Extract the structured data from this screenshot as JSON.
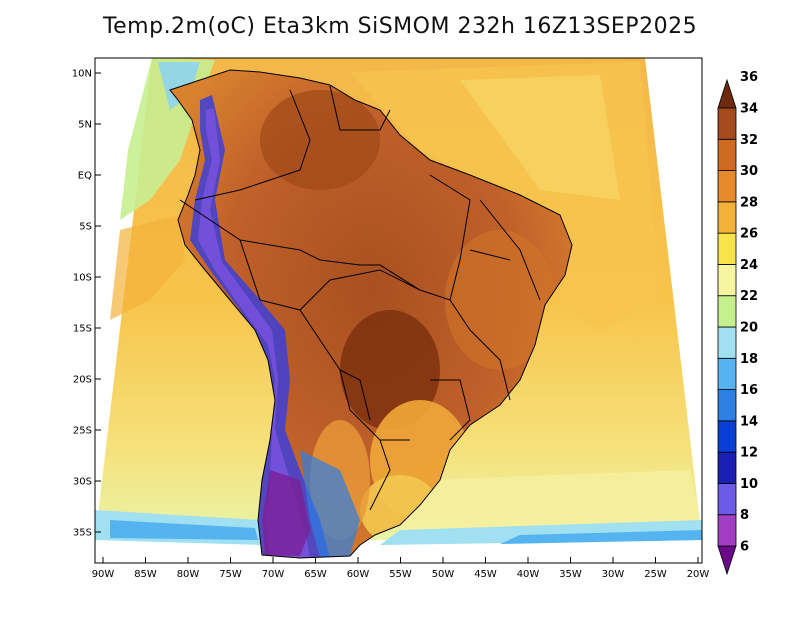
{
  "title": "Temp.2m(oC) Eta3km SiSMOM 232h 16Z13SEP2025",
  "map": {
    "lat_labels": [
      "10N",
      "5N",
      "EQ",
      "5S",
      "10S",
      "15S",
      "20S",
      "25S",
      "30S",
      "35S"
    ],
    "lat_values": [
      10,
      5,
      0,
      -5,
      -10,
      -15,
      -20,
      -25,
      -30,
      -35
    ],
    "lon_labels": [
      "90W",
      "85W",
      "80W",
      "75W",
      "70W",
      "65W",
      "60W",
      "55W",
      "50W",
      "45W",
      "40W",
      "35W",
      "30W",
      "25W",
      "20W"
    ],
    "lon_values": [
      -90,
      -85,
      -80,
      -75,
      -70,
      -65,
      -60,
      -55,
      -50,
      -45,
      -40,
      -35,
      -30,
      -25,
      -20
    ]
  },
  "colorbar": {
    "labels": [
      "6",
      "8",
      "10",
      "12",
      "14",
      "16",
      "18",
      "20",
      "22",
      "24",
      "26",
      "28",
      "30",
      "32",
      "34",
      "36"
    ],
    "colors": [
      "#6a0a8a",
      "#a23ec4",
      "#6a5ce6",
      "#1b1fb3",
      "#0a3fd6",
      "#2d7fe3",
      "#55b4f0",
      "#a0e0f0",
      "#c6f08e",
      "#f6f6a0",
      "#f7e34a",
      "#f4b23a",
      "#e78a2a",
      "#cf6a22",
      "#a44b1e",
      "#6e2a0e"
    ]
  }
}
